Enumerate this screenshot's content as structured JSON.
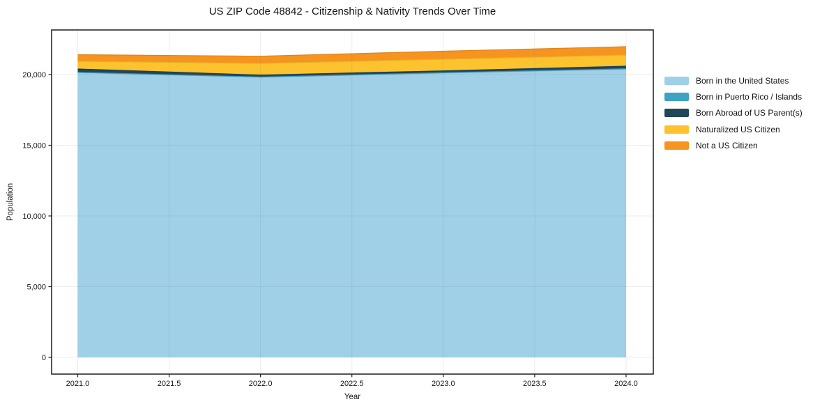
{
  "chart_data": {
    "type": "area",
    "stacked": true,
    "title": "US ZIP Code 48842 - Citizenship & Nativity Trends Over Time",
    "xlabel": "Year",
    "ylabel": "Population",
    "x": [
      2021,
      2022,
      2023,
      2024
    ],
    "series": [
      {
        "name": "Born in the United States",
        "color": "#9FD0E8",
        "values": [
          20133,
          19802,
          20098,
          20369
        ]
      },
      {
        "name": "Born in Puerto Rico / Islands",
        "color": "#3EA3C3",
        "values": [
          25,
          25,
          30,
          40
        ]
      },
      {
        "name": "Born Abroad of US Parent(s)",
        "color": "#20465A",
        "values": [
          236,
          138,
          132,
          181
        ]
      },
      {
        "name": "Naturalized US Citizen",
        "color": "#FCC32F",
        "values": [
          542,
          823,
          823,
          789
        ]
      },
      {
        "name": "Not a US Citizen",
        "color": "#F6941F",
        "values": [
          468,
          507,
          566,
          591
        ]
      }
    ],
    "xticks": [
      2021.0,
      2021.5,
      2022.0,
      2022.5,
      2023.0,
      2023.5,
      2024.0
    ],
    "xtick_labels": [
      "2021.0",
      "2021.5",
      "2022.0",
      "2022.5",
      "2023.0",
      "2023.5",
      "2024.0"
    ],
    "yticks": [
      0,
      5000,
      10000,
      15000,
      20000
    ],
    "ytick_labels": [
      "0",
      "5,000",
      "10,000",
      "15,000",
      "20,000"
    ],
    "xlim": [
      2020.857,
      2024.149
    ],
    "ylim": [
      -1182,
      23153
    ],
    "grid": true,
    "legend_position": "right",
    "background_color": "#ffffff",
    "text_color": "#151515"
  }
}
